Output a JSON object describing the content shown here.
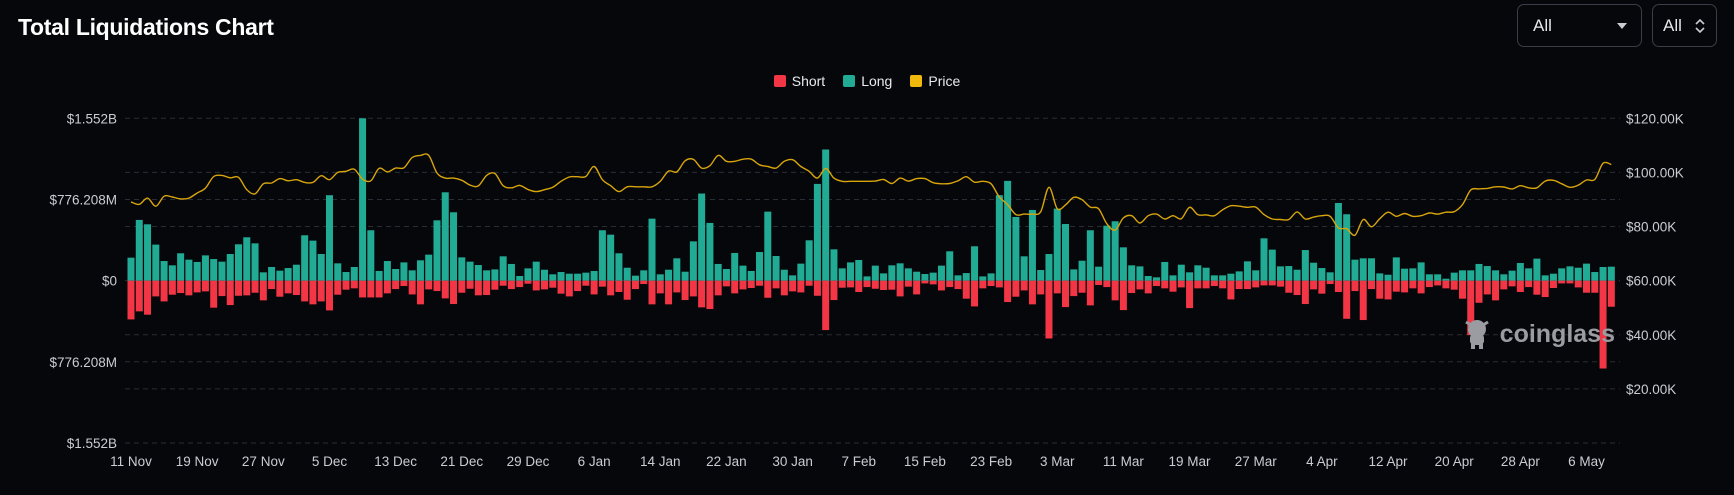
{
  "header": {
    "title": "Total Liquidations Chart",
    "range_select": {
      "value": "All"
    },
    "coin_select": {
      "value": "All"
    }
  },
  "watermark": "coinglass",
  "colors": {
    "short": "#f23645",
    "long": "#22ab94",
    "price": "#d9a50c",
    "background": "#05070b",
    "grid": "#2a2d33"
  },
  "chart_data": {
    "type": "bar",
    "title": "Total Liquidations Chart",
    "legend": {
      "position": "top-center",
      "entries": [
        "Short",
        "Long",
        "Price"
      ]
    },
    "grid": true,
    "left_axis": {
      "ticks": [
        "$1.552B",
        "$776.208M",
        "$0",
        "$776.208M",
        "$1.552B"
      ],
      "range_millions": [
        -1552,
        1552
      ]
    },
    "right_axis": {
      "ticks": [
        "$120.00K",
        "$100.00K",
        "$80.00K",
        "$60.00K",
        "$40.00K",
        "$20.00K"
      ],
      "range_k": [
        0,
        120
      ]
    },
    "x_ticks": [
      "11 Nov",
      "19 Nov",
      "27 Nov",
      "5 Dec",
      "13 Dec",
      "21 Dec",
      "29 Dec",
      "6 Jan",
      "14 Jan",
      "22 Jan",
      "30 Jan",
      "7 Feb",
      "15 Feb",
      "23 Feb",
      "3 Mar",
      "11 Mar",
      "19 Mar",
      "27 Mar",
      "4 Apr",
      "12 Apr",
      "20 Apr",
      "28 Apr",
      "6 May"
    ],
    "x": [
      "11 Nov",
      "12 Nov",
      "13 Nov",
      "14 Nov",
      "15 Nov",
      "16 Nov",
      "17 Nov",
      "18 Nov",
      "19 Nov",
      "20 Nov",
      "21 Nov",
      "22 Nov",
      "23 Nov",
      "24 Nov",
      "25 Nov",
      "26 Nov",
      "27 Nov",
      "28 Nov",
      "29 Nov",
      "30 Nov",
      "1 Dec",
      "2 Dec",
      "3 Dec",
      "4 Dec",
      "5 Dec",
      "6 Dec",
      "7 Dec",
      "8 Dec",
      "9 Dec",
      "10 Dec",
      "11 Dec",
      "12 Dec",
      "13 Dec",
      "14 Dec",
      "15 Dec",
      "16 Dec",
      "17 Dec",
      "18 Dec",
      "19 Dec",
      "20 Dec",
      "21 Dec",
      "22 Dec",
      "23 Dec",
      "24 Dec",
      "25 Dec",
      "26 Dec",
      "27 Dec",
      "28 Dec",
      "29 Dec",
      "30 Dec",
      "31 Dec",
      "1 Jan",
      "2 Jan",
      "3 Jan",
      "4 Jan",
      "5 Jan",
      "6 Jan",
      "7 Jan",
      "8 Jan",
      "9 Jan",
      "10 Jan",
      "11 Jan",
      "12 Jan",
      "13 Jan",
      "14 Jan",
      "15 Jan",
      "16 Jan",
      "17 Jan",
      "18 Jan",
      "19 Jan",
      "20 Jan",
      "21 Jan",
      "22 Jan",
      "23 Jan",
      "24 Jan",
      "25 Jan",
      "26 Jan",
      "27 Jan",
      "28 Jan",
      "29 Jan",
      "30 Jan",
      "31 Jan",
      "1 Feb",
      "2 Feb",
      "3 Feb",
      "4 Feb",
      "5 Feb",
      "6 Feb",
      "7 Feb",
      "8 Feb",
      "9 Feb",
      "10 Feb",
      "11 Feb",
      "12 Feb",
      "13 Feb",
      "14 Feb",
      "15 Feb",
      "16 Feb",
      "17 Feb",
      "18 Feb",
      "19 Feb",
      "20 Feb",
      "21 Feb",
      "22 Feb",
      "23 Feb",
      "24 Feb",
      "25 Feb",
      "26 Feb",
      "27 Feb",
      "28 Feb",
      "1 Mar",
      "2 Mar",
      "3 Mar",
      "4 Mar",
      "5 Mar",
      "6 Mar",
      "7 Mar",
      "8 Mar",
      "9 Mar",
      "10 Mar",
      "11 Mar",
      "12 Mar",
      "13 Mar",
      "14 Mar",
      "15 Mar",
      "16 Mar",
      "17 Mar",
      "18 Mar",
      "19 Mar",
      "20 Mar",
      "21 Mar",
      "22 Mar",
      "23 Mar",
      "24 Mar",
      "25 Mar",
      "26 Mar",
      "27 Mar",
      "28 Mar",
      "29 Mar",
      "30 Mar",
      "31 Mar",
      "1 Apr",
      "2 Apr",
      "3 Apr",
      "4 Apr",
      "5 Apr",
      "6 Apr",
      "7 Apr",
      "8 Apr",
      "9 Apr",
      "10 Apr",
      "11 Apr",
      "12 Apr",
      "13 Apr",
      "14 Apr",
      "15 Apr",
      "16 Apr",
      "17 Apr",
      "18 Apr",
      "19 Apr",
      "20 Apr",
      "21 Apr",
      "22 Apr",
      "23 Apr",
      "24 Apr",
      "25 Apr",
      "26 Apr",
      "27 Apr",
      "28 Apr",
      "29 Apr",
      "30 Apr",
      "1 May",
      "2 May",
      "3 May",
      "4 May",
      "5 May",
      "6 May",
      "7 May",
      "8 May",
      "9 May"
    ],
    "series": [
      {
        "name": "Short",
        "unit": "USD millions",
        "values": [
          370,
          293,
          325,
          150,
          198,
          134,
          118,
          140,
          112,
          102,
          258,
          147,
          233,
          144,
          140,
          115,
          188,
          80,
          153,
          121,
          137,
          198,
          226,
          198,
          284,
          134,
          86,
          73,
          160,
          160,
          160,
          121,
          80,
          51,
          131,
          226,
          83,
          99,
          169,
          223,
          115,
          77,
          140,
          137,
          86,
          48,
          80,
          61,
          29,
          93,
          83,
          67,
          124,
          150,
          99,
          48,
          131,
          57,
          140,
          108,
          182,
          80,
          32,
          226,
          121,
          226,
          112,
          185,
          150,
          255,
          271,
          140,
          54,
          121,
          83,
          70,
          48,
          163,
          73,
          140,
          102,
          112,
          48,
          144,
          472,
          185,
          67,
          64,
          108,
          61,
          77,
          89,
          86,
          150,
          57,
          131,
          26,
          35,
          93,
          61,
          80,
          172,
          246,
          73,
          51,
          64,
          204,
          153,
          93,
          226,
          131,
          552,
          121,
          252,
          147,
          115,
          236,
          41,
          61,
          188,
          281,
          118,
          83,
          121,
          51,
          73,
          105,
          64,
          262,
          73,
          73,
          51,
          73,
          179,
          80,
          80,
          64,
          45,
          45,
          57,
          115,
          137,
          223,
          83,
          124,
          32,
          108,
          364,
          99,
          376,
          80,
          172,
          179,
          105,
          112,
          73,
          121,
          61,
          45,
          73,
          86,
          172,
          520,
          211,
          131,
          188,
          83,
          54,
          108,
          61,
          134,
          156,
          70,
          26,
          26,
          64,
          115,
          115,
          839,
          249
        ]
      },
      {
        "name": "Long",
        "unit": "USD millions",
        "values": [
          220,
          581,
          539,
          345,
          188,
          147,
          262,
          201,
          179,
          242,
          207,
          182,
          255,
          348,
          415,
          357,
          80,
          131,
          96,
          121,
          153,
          434,
          383,
          255,
          817,
          166,
          83,
          131,
          1552,
          482,
          93,
          188,
          112,
          175,
          99,
          195,
          249,
          577,
          845,
          654,
          223,
          182,
          150,
          99,
          108,
          233,
          160,
          45,
          118,
          182,
          105,
          61,
          83,
          67,
          67,
          77,
          93,
          482,
          440,
          262,
          124,
          48,
          99,
          593,
          61,
          105,
          214,
          86,
          376,
          833,
          552,
          160,
          112,
          265,
          144,
          93,
          274,
          660,
          236,
          105,
          51,
          163,
          386,
          925,
          1254,
          300,
          118,
          175,
          198,
          41,
          144,
          70,
          147,
          166,
          118,
          86,
          64,
          77,
          144,
          281,
          51,
          73,
          329,
          41,
          70,
          817,
          954,
          609,
          233,
          676,
          102,
          255,
          689,
          542,
          108,
          191,
          482,
          134,
          526,
          568,
          319,
          147,
          137,
          45,
          32,
          179,
          51,
          153,
          80,
          147,
          124,
          51,
          51,
          67,
          89,
          185,
          99,
          405,
          297,
          137,
          140,
          105,
          293,
          172,
          121,
          80,
          743,
          635,
          201,
          214,
          214,
          70,
          57,
          223,
          115,
          118,
          175,
          61,
          61,
          19,
          77,
          99,
          99,
          160,
          140,
          99,
          61,
          96,
          169,
          118,
          211,
          51,
          67,
          118,
          137,
          124,
          163,
          83,
          131,
          134
        ]
      },
      {
        "name": "Price",
        "type": "line",
        "unit": "USD thousands",
        "values": [
          89.1,
          88.2,
          90.5,
          87.5,
          91.2,
          90.9,
          90.2,
          90.5,
          92.4,
          94.2,
          98.5,
          98.9,
          98.0,
          98.2,
          93.6,
          92.1,
          95.8,
          96.1,
          97.7,
          96.9,
          97.3,
          96.3,
          96.3,
          98.8,
          97.3,
          100.0,
          100.4,
          101.2,
          97.5,
          96.9,
          101.5,
          100.2,
          101.6,
          101.7,
          105.5,
          106.3,
          106.3,
          99.8,
          97.9,
          97.9,
          97.1,
          95.3,
          95.0,
          98.9,
          99.6,
          95.1,
          94.3,
          95.2,
          93.7,
          92.9,
          93.6,
          94.5,
          96.7,
          98.3,
          98.4,
          98.5,
          102.2,
          97.3,
          95.1,
          92.9,
          94.7,
          94.7,
          94.7,
          94.7,
          96.7,
          100.5,
          100.2,
          104.3,
          104.8,
          101.6,
          102.5,
          106.3,
          104.1,
          104.1,
          104.9,
          104.9,
          102.8,
          102.2,
          101.6,
          104.1,
          104.7,
          102.2,
          100.4,
          97.9,
          101.5,
          97.9,
          96.7,
          96.7,
          96.7,
          96.7,
          96.8,
          97.4,
          95.9,
          97.9,
          96.8,
          97.7,
          97.7,
          96.2,
          95.8,
          95.9,
          96.9,
          98.4,
          96.4,
          96.7,
          95.8,
          90.9,
          88.1,
          84.4,
          84.6,
          84.6,
          85.5,
          94.5,
          86.6,
          88.0,
          90.8,
          89.9,
          87.2,
          86.6,
          81.0,
          78.7,
          83.2,
          84.0,
          81.3,
          84.0,
          84.6,
          82.8,
          84.0,
          82.9,
          87.1,
          84.4,
          84.3,
          84.0,
          86.2,
          87.7,
          87.5,
          87.1,
          87.2,
          84.4,
          82.8,
          82.6,
          82.6,
          85.4,
          82.8,
          83.5,
          84.0,
          83.8,
          79.5,
          79.2,
          76.8,
          82.6,
          79.9,
          82.9,
          85.3,
          83.8,
          84.8,
          83.8,
          84.0,
          85.0,
          84.6,
          85.3,
          85.5,
          88.1,
          93.5,
          93.9,
          94.1,
          94.7,
          94.6,
          93.9,
          95.1,
          94.3,
          94.3,
          96.8,
          97.1,
          95.8,
          94.5,
          95.3,
          97.2,
          97.4,
          103.4,
          102.9
        ]
      }
    ]
  }
}
